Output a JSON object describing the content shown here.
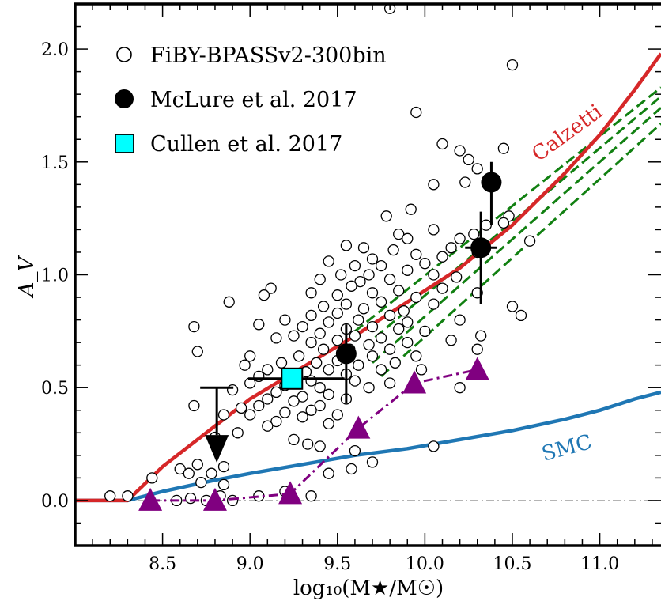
{
  "chart_data": {
    "type": "scatter",
    "xlabel": "log₁₀(M★/M☉)",
    "ylabel": "A_V",
    "xlim": [
      8.0,
      11.35
    ],
    "ylim": [
      -0.2,
      2.2
    ],
    "x_ticks": [
      "8.5",
      "9.0",
      "9.5",
      "10.0",
      "10.5",
      "11.0"
    ],
    "x_tick_values": [
      8.5,
      9.0,
      9.5,
      10.0,
      10.5,
      11.0
    ],
    "y_ticks": [
      "0.0",
      "0.5",
      "1.0",
      "1.5",
      "2.0"
    ],
    "y_tick_values": [
      0.0,
      0.5,
      1.0,
      1.5,
      2.0
    ],
    "legend_position": "top-left",
    "legend": [
      {
        "label": "FiBY-BPASSv2-300bin",
        "marker": "open-circle"
      },
      {
        "label": "McLure et al. 2017",
        "marker": "filled-circle"
      },
      {
        "label": "Cullen et al. 2017",
        "marker": "cyan-square"
      }
    ],
    "colors": {
      "calzetti": "#d62728",
      "smc": "#1f77b4",
      "green": "#118011",
      "purple": "#800080",
      "cyan": "#00ffff",
      "zero_line": "#888888"
    },
    "annotations": [
      {
        "text": "Calzetti",
        "series": "calzetti"
      },
      {
        "text": "SMC",
        "series": "smc"
      }
    ],
    "calzetti_curve": {
      "x": [
        8.0,
        8.3,
        8.5,
        8.7,
        9.0,
        9.3,
        9.6,
        9.9,
        10.2,
        10.5,
        10.8,
        11.0,
        11.2,
        11.35
      ],
      "y": [
        0.0,
        0.0,
        0.15,
        0.27,
        0.45,
        0.59,
        0.73,
        0.88,
        1.03,
        1.22,
        1.45,
        1.62,
        1.82,
        1.98
      ]
    },
    "smc_curve": {
      "x": [
        8.0,
        8.3,
        8.5,
        8.8,
        9.0,
        9.3,
        9.6,
        9.9,
        10.2,
        10.5,
        10.8,
        11.0,
        11.2,
        11.35
      ],
      "y": [
        0.0,
        0.0,
        0.04,
        0.09,
        0.12,
        0.16,
        0.2,
        0.23,
        0.27,
        0.31,
        0.36,
        0.4,
        0.45,
        0.48
      ]
    },
    "green_dashed_lines": [
      {
        "x": [
          9.6,
          11.35
        ],
        "y": [
          0.75,
          1.83
        ]
      },
      {
        "x": [
          9.65,
          11.35
        ],
        "y": [
          0.68,
          1.79
        ]
      },
      {
        "x": [
          9.7,
          11.35
        ],
        "y": [
          0.61,
          1.74
        ]
      },
      {
        "x": [
          9.75,
          11.35
        ],
        "y": [
          0.55,
          1.67
        ]
      }
    ],
    "purple_series": {
      "x": [
        8.43,
        8.8,
        9.23,
        9.62,
        9.94,
        10.3
      ],
      "y": [
        0.0,
        0.0,
        0.03,
        0.32,
        0.52,
        0.58
      ]
    },
    "mclure": [
      {
        "x": 9.55,
        "y": 0.65,
        "xerr": 0.04,
        "yerr_lo": 0.22,
        "yerr_hi": 0.13
      },
      {
        "x": 10.32,
        "y": 1.12,
        "xerr": 0.09,
        "yerr_lo": 0.25,
        "yerr_hi": 0.16
      },
      {
        "x": 10.38,
        "y": 1.41,
        "xerr": 0.0,
        "yerr_lo": 0.19,
        "yerr_hi": 0.09
      }
    ],
    "mclure_upper_limit": {
      "x": 8.81,
      "y": 0.5,
      "arrow_to": 0.22
    },
    "cullen": {
      "x": 9.24,
      "y": 0.54,
      "xerr_lo": 0.25,
      "xerr_hi": 0.3
    },
    "fiby_points": [
      [
        9.8,
        2.18
      ],
      [
        10.5,
        1.93
      ],
      [
        9.95,
        1.72
      ],
      [
        10.1,
        1.58
      ],
      [
        10.45,
        1.56
      ],
      [
        10.2,
        1.55
      ],
      [
        10.25,
        1.51
      ],
      [
        10.3,
        1.47
      ],
      [
        10.05,
        1.4
      ],
      [
        10.23,
        1.41
      ],
      [
        9.92,
        1.29
      ],
      [
        10.48,
        1.26
      ],
      [
        10.05,
        1.2
      ],
      [
        10.35,
        1.22
      ],
      [
        10.45,
        1.23
      ],
      [
        9.78,
        1.26
      ],
      [
        9.85,
        1.18
      ],
      [
        10.28,
        1.18
      ],
      [
        10.2,
        1.16
      ],
      [
        9.9,
        1.16
      ],
      [
        10.6,
        1.15
      ],
      [
        9.55,
        1.13
      ],
      [
        9.65,
        1.12
      ],
      [
        9.82,
        1.11
      ],
      [
        9.95,
        1.09
      ],
      [
        10.1,
        1.08
      ],
      [
        10.3,
        1.1
      ],
      [
        10.15,
        1.12
      ],
      [
        9.7,
        1.07
      ],
      [
        10.0,
        1.05
      ],
      [
        9.6,
        1.04
      ],
      [
        9.45,
        1.06
      ],
      [
        9.75,
        1.04
      ],
      [
        9.52,
        1.0
      ],
      [
        9.9,
        1.02
      ],
      [
        10.05,
        1.0
      ],
      [
        9.68,
        1.0
      ],
      [
        9.8,
        0.98
      ],
      [
        10.18,
        0.99
      ],
      [
        9.4,
        0.98
      ],
      [
        9.63,
        0.97
      ],
      [
        9.58,
        0.95
      ],
      [
        9.85,
        0.93
      ],
      [
        10.1,
        0.94
      ],
      [
        9.7,
        0.92
      ],
      [
        9.5,
        0.91
      ],
      [
        9.35,
        0.92
      ],
      [
        9.95,
        0.9
      ],
      [
        10.3,
        0.92
      ],
      [
        9.12,
        0.94
      ],
      [
        9.08,
        0.91
      ],
      [
        9.75,
        0.88
      ],
      [
        9.55,
        0.87
      ],
      [
        9.42,
        0.86
      ],
      [
        10.05,
        0.87
      ],
      [
        9.65,
        0.85
      ],
      [
        9.88,
        0.84
      ],
      [
        10.5,
        0.86
      ],
      [
        8.88,
        0.88
      ],
      [
        9.5,
        0.83
      ],
      [
        9.8,
        0.82
      ],
      [
        9.35,
        0.82
      ],
      [
        9.62,
        0.8
      ],
      [
        10.55,
        0.82
      ],
      [
        9.2,
        0.8
      ],
      [
        9.45,
        0.79
      ],
      [
        9.9,
        0.79
      ],
      [
        10.2,
        0.8
      ],
      [
        9.7,
        0.77
      ],
      [
        9.55,
        0.76
      ],
      [
        9.3,
        0.77
      ],
      [
        9.05,
        0.78
      ],
      [
        9.85,
        0.76
      ],
      [
        10.0,
        0.75
      ],
      [
        9.4,
        0.74
      ],
      [
        9.6,
        0.73
      ],
      [
        9.75,
        0.72
      ],
      [
        9.25,
        0.73
      ],
      [
        10.32,
        0.73
      ],
      [
        9.5,
        0.71
      ],
      [
        9.15,
        0.72
      ],
      [
        9.9,
        0.7
      ],
      [
        9.68,
        0.69
      ],
      [
        9.35,
        0.7
      ],
      [
        10.15,
        0.71
      ],
      [
        8.68,
        0.77
      ],
      [
        9.8,
        0.67
      ],
      [
        9.57,
        0.67
      ],
      [
        9.42,
        0.67
      ],
      [
        10.3,
        0.67
      ],
      [
        9.7,
        0.64
      ],
      [
        9.28,
        0.64
      ],
      [
        9.0,
        0.64
      ],
      [
        9.95,
        0.64
      ],
      [
        9.5,
        0.62
      ],
      [
        8.7,
        0.66
      ],
      [
        9.83,
        0.61
      ],
      [
        9.62,
        0.6
      ],
      [
        9.38,
        0.61
      ],
      [
        9.18,
        0.61
      ],
      [
        9.75,
        0.58
      ],
      [
        9.45,
        0.58
      ],
      [
        9.1,
        0.58
      ],
      [
        9.98,
        0.58
      ],
      [
        8.97,
        0.6
      ],
      [
        9.55,
        0.56
      ],
      [
        9.32,
        0.57
      ],
      [
        9.6,
        0.53
      ],
      [
        9.35,
        0.53
      ],
      [
        9.05,
        0.55
      ],
      [
        9.8,
        0.52
      ],
      [
        9.4,
        0.5
      ],
      [
        9.2,
        0.51
      ],
      [
        9.0,
        0.52
      ],
      [
        9.68,
        0.5
      ],
      [
        10.2,
        0.5
      ],
      [
        9.15,
        0.48
      ],
      [
        9.45,
        0.47
      ],
      [
        8.9,
        0.49
      ],
      [
        9.3,
        0.46
      ],
      [
        9.55,
        0.45
      ],
      [
        8.68,
        0.42
      ],
      [
        9.1,
        0.45
      ],
      [
        9.25,
        0.44
      ],
      [
        9.05,
        0.42
      ],
      [
        9.4,
        0.42
      ],
      [
        8.95,
        0.41
      ],
      [
        9.35,
        0.4
      ],
      [
        9.5,
        0.38
      ],
      [
        9.2,
        0.39
      ],
      [
        9.0,
        0.38
      ],
      [
        9.3,
        0.37
      ],
      [
        8.85,
        0.38
      ],
      [
        9.15,
        0.35
      ],
      [
        9.45,
        0.34
      ],
      [
        9.1,
        0.33
      ],
      [
        8.93,
        0.3
      ],
      [
        9.25,
        0.27
      ],
      [
        8.8,
        0.28
      ],
      [
        9.33,
        0.25
      ],
      [
        9.4,
        0.24
      ],
      [
        9.6,
        0.22
      ],
      [
        10.05,
        0.24
      ],
      [
        9.7,
        0.17
      ],
      [
        8.85,
        0.15
      ],
      [
        8.78,
        0.12
      ],
      [
        8.7,
        0.16
      ],
      [
        8.6,
        0.14
      ],
      [
        8.65,
        0.12
      ],
      [
        8.72,
        0.08
      ],
      [
        8.85,
        0.07
      ],
      [
        9.45,
        0.12
      ],
      [
        9.58,
        0.14
      ],
      [
        8.83,
        0.02
      ],
      [
        8.58,
        0.0
      ],
      [
        8.66,
        0.01
      ],
      [
        8.75,
        0.0
      ],
      [
        8.9,
        0.0
      ],
      [
        8.44,
        0.1
      ],
      [
        8.2,
        0.02
      ],
      [
        8.3,
        0.02
      ],
      [
        9.05,
        0.02
      ],
      [
        9.35,
        0.02
      ],
      [
        9.2,
        0.04
      ]
    ]
  }
}
